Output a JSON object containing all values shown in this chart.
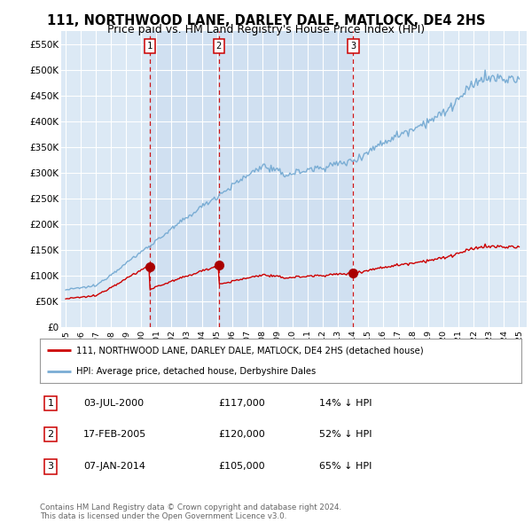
{
  "title": "111, NORTHWOOD LANE, DARLEY DALE, MATLOCK, DE4 2HS",
  "subtitle": "Price paid vs. HM Land Registry's House Price Index (HPI)",
  "ylim": [
    0,
    575000
  ],
  "yticks": [
    0,
    50000,
    100000,
    150000,
    200000,
    250000,
    300000,
    350000,
    400000,
    450000,
    500000,
    550000
  ],
  "ytick_labels": [
    "£0",
    "£50K",
    "£100K",
    "£150K",
    "£200K",
    "£250K",
    "£300K",
    "£350K",
    "£400K",
    "£450K",
    "£500K",
    "£550K"
  ],
  "background_color": "#ffffff",
  "plot_bg_color": "#dce9f5",
  "grid_color": "#ffffff",
  "sale_dates": [
    2000.54,
    2005.13,
    2014.03
  ],
  "sale_prices": [
    117000,
    120000,
    105000
  ],
  "sale_labels": [
    "1",
    "2",
    "3"
  ],
  "sale_vline_color": "#cc0000",
  "sale_dot_color": "#aa0000",
  "hpi_line_color": "#7aadd4",
  "price_line_color": "#cc0000",
  "legend_label_price": "111, NORTHWOOD LANE, DARLEY DALE, MATLOCK, DE4 2HS (detached house)",
  "legend_label_hpi": "HPI: Average price, detached house, Derbyshire Dales",
  "table_rows": [
    {
      "num": "1",
      "date": "03-JUL-2000",
      "price": "£117,000",
      "hpi": "14% ↓ HPI"
    },
    {
      "num": "2",
      "date": "17-FEB-2005",
      "price": "£120,000",
      "hpi": "52% ↓ HPI"
    },
    {
      "num": "3",
      "date": "07-JAN-2014",
      "price": "£105,000",
      "hpi": "65% ↓ HPI"
    }
  ],
  "footer": "Contains HM Land Registry data © Crown copyright and database right 2024.\nThis data is licensed under the Open Government Licence v3.0.",
  "title_fontsize": 10.5,
  "subtitle_fontsize": 9,
  "hpi_seed": 12345
}
